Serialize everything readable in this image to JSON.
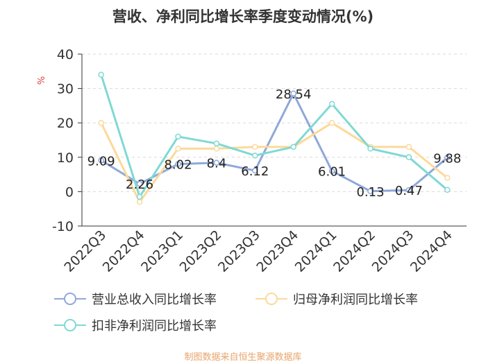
{
  "chart_data": {
    "type": "line",
    "title": "营收、净利同比增长率季度变动情况(%)",
    "ylabel": "%",
    "xlabel": "",
    "ylim": [
      -10,
      40
    ],
    "yticks": [
      -10,
      0,
      10,
      20,
      30,
      40
    ],
    "grid": true,
    "categories": [
      "2022Q3",
      "2022Q4",
      "2023Q1",
      "2023Q2",
      "2023Q3",
      "2023Q4",
      "2024Q1",
      "2024Q2",
      "2024Q3",
      "2024Q4"
    ],
    "series": [
      {
        "name": "营业总收入同比增长率",
        "color": "#8fa8d9",
        "labeled": true,
        "values": [
          9.09,
          2.26,
          8.02,
          8.4,
          6.12,
          28.54,
          6.01,
          0.13,
          0.47,
          9.88
        ],
        "labels": [
          "9.09",
          "2.26",
          "8.02",
          "8.4",
          "6.12",
          "28.54",
          "6.01",
          "0.13",
          "0.47",
          "9.88"
        ]
      },
      {
        "name": "归母净利润同比增长率",
        "color": "#fcd99a",
        "labeled": false,
        "values": [
          20,
          -3,
          12.5,
          12.5,
          13,
          13,
          20,
          13,
          13,
          4
        ]
      },
      {
        "name": "扣非净利润同比增长率",
        "color": "#7fd9d3",
        "labeled": false,
        "values": [
          34,
          -1.5,
          16,
          14,
          10.5,
          13,
          25.5,
          12.5,
          10,
          0.5
        ]
      }
    ],
    "legend_position": "bottom"
  },
  "source": "制图数据来自恒生聚源数据库"
}
